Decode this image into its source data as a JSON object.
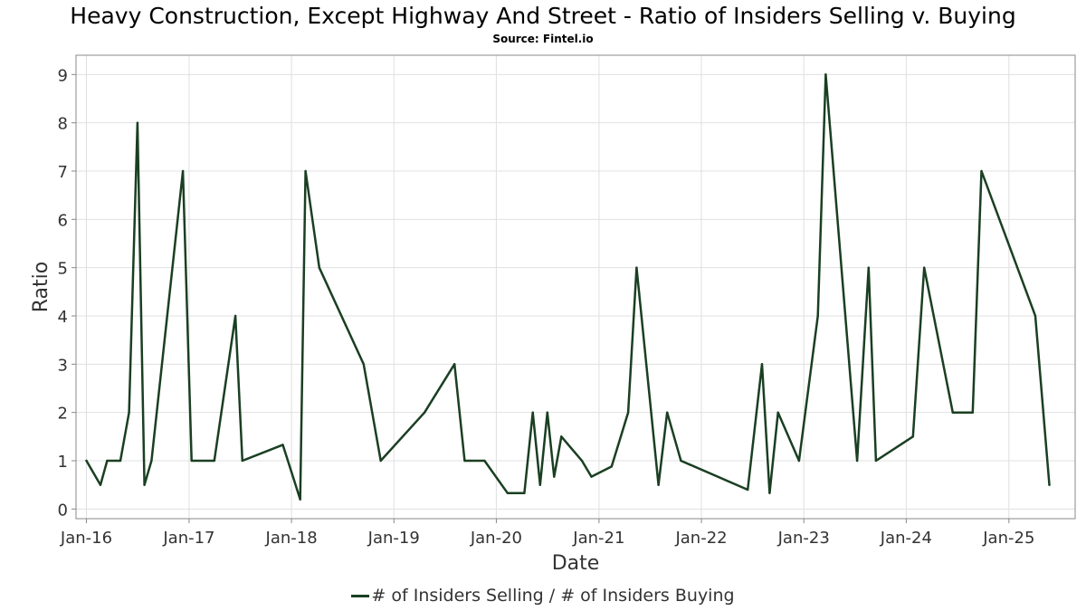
{
  "header": {
    "title": "Heavy Construction, Except Highway And Street - Ratio of Insiders Selling v. Buying",
    "subtitle": "Source: Fintel.io"
  },
  "colors": {
    "line": "#1a3f22",
    "grid": "#e0e0e0",
    "frame": "#888888"
  },
  "chart_data": {
    "type": "line",
    "title": "Heavy Construction, Except Highway And Street - Ratio of Insiders Selling v. Buying",
    "subtitle": "Source: Fintel.io",
    "xlabel": "Date",
    "ylabel": "Ratio",
    "grid": true,
    "legend_position": "bottom-center",
    "xlim": [
      "2015-11-25",
      "2025-08-25"
    ],
    "ylim": [
      -0.2,
      9.4
    ],
    "x_ticks": [
      {
        "date": "2016-01-01",
        "label": "Jan-16"
      },
      {
        "date": "2017-01-01",
        "label": "Jan-17"
      },
      {
        "date": "2018-01-01",
        "label": "Jan-18"
      },
      {
        "date": "2019-01-01",
        "label": "Jan-19"
      },
      {
        "date": "2020-01-01",
        "label": "Jan-20"
      },
      {
        "date": "2021-01-01",
        "label": "Jan-21"
      },
      {
        "date": "2022-01-01",
        "label": "Jan-22"
      },
      {
        "date": "2023-01-01",
        "label": "Jan-23"
      },
      {
        "date": "2024-01-01",
        "label": "Jan-24"
      },
      {
        "date": "2025-01-01",
        "label": "Jan-25"
      }
    ],
    "y_ticks": [
      0,
      1,
      2,
      3,
      4,
      5,
      6,
      7,
      8,
      9
    ],
    "series": [
      {
        "name": "# of Insiders Selling / # of Insiders Buying",
        "points": [
          [
            "2016-01-01",
            1
          ],
          [
            "2016-02-20",
            0.5
          ],
          [
            "2016-03-15",
            1
          ],
          [
            "2016-05-01",
            1
          ],
          [
            "2016-06-01",
            2
          ],
          [
            "2016-07-01",
            8
          ],
          [
            "2016-07-26",
            0.5
          ],
          [
            "2016-08-20",
            1
          ],
          [
            "2016-12-10",
            7
          ],
          [
            "2017-01-10",
            1
          ],
          [
            "2017-04-01",
            1
          ],
          [
            "2017-06-15",
            4
          ],
          [
            "2017-07-10",
            1
          ],
          [
            "2017-12-01",
            1.33
          ],
          [
            "2018-02-01",
            0.2
          ],
          [
            "2018-02-20",
            7
          ],
          [
            "2018-04-10",
            5
          ],
          [
            "2018-09-15",
            3
          ],
          [
            "2018-11-15",
            1
          ],
          [
            "2019-04-20",
            2
          ],
          [
            "2019-08-05",
            3
          ],
          [
            "2019-09-10",
            1
          ],
          [
            "2019-10-01",
            1
          ],
          [
            "2019-11-20",
            1
          ],
          [
            "2020-02-10",
            0.33
          ],
          [
            "2020-04-10",
            0.33
          ],
          [
            "2020-05-10",
            2
          ],
          [
            "2020-06-05",
            0.5
          ],
          [
            "2020-07-01",
            2
          ],
          [
            "2020-07-25",
            0.67
          ],
          [
            "2020-08-20",
            1.5
          ],
          [
            "2020-11-01",
            1
          ],
          [
            "2020-12-05",
            0.67
          ],
          [
            "2021-02-15",
            0.88
          ],
          [
            "2021-04-15",
            2
          ],
          [
            "2021-05-15",
            5
          ],
          [
            "2021-08-01",
            0.5
          ],
          [
            "2021-09-01",
            2
          ],
          [
            "2021-10-20",
            1
          ],
          [
            "2022-06-15",
            0.4
          ],
          [
            "2022-08-05",
            3
          ],
          [
            "2022-09-01",
            0.33
          ],
          [
            "2022-10-01",
            2
          ],
          [
            "2022-12-15",
            1
          ],
          [
            "2023-02-20",
            4
          ],
          [
            "2023-03-20",
            9
          ],
          [
            "2023-07-10",
            1
          ],
          [
            "2023-08-20",
            5
          ],
          [
            "2023-09-15",
            1
          ],
          [
            "2024-01-25",
            1.5
          ],
          [
            "2024-03-05",
            5
          ],
          [
            "2024-06-15",
            2
          ],
          [
            "2024-08-25",
            2
          ],
          [
            "2024-09-25",
            7
          ],
          [
            "2025-04-05",
            4
          ],
          [
            "2025-05-25",
            0.5
          ]
        ]
      }
    ]
  }
}
